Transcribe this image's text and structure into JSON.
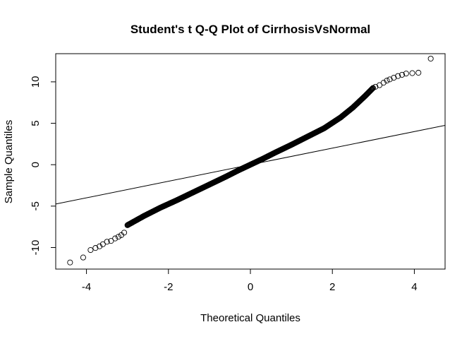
{
  "chart_data": {
    "type": "scatter",
    "title": "Student's t Q-Q Plot of CirrhosisVsNormal",
    "xlabel": "Theoretical Quantiles",
    "ylabel": "Sample Quantiles",
    "xlim": [
      -4.75,
      4.75
    ],
    "ylim": [
      -12.6,
      13.4
    ],
    "xticks": [
      -4,
      -2,
      0,
      2,
      4
    ],
    "yticks": [
      -10,
      -5,
      0,
      5,
      10
    ],
    "grid": false,
    "legend": "none",
    "reference_line": {
      "slope": 1.0,
      "intercept": 0.0
    },
    "curve_points": [
      [
        -3.0,
        -7.3
      ],
      [
        -2.6,
        -6.2
      ],
      [
        -2.2,
        -5.2
      ],
      [
        -1.8,
        -4.3
      ],
      [
        -1.4,
        -3.35
      ],
      [
        -1.0,
        -2.4
      ],
      [
        -0.6,
        -1.45
      ],
      [
        -0.3,
        -0.7
      ],
      [
        0.0,
        0.0
      ],
      [
        0.3,
        0.7
      ],
      [
        0.6,
        1.45
      ],
      [
        1.0,
        2.4
      ],
      [
        1.4,
        3.4
      ],
      [
        1.8,
        4.4
      ],
      [
        2.2,
        5.7
      ],
      [
        2.5,
        6.9
      ],
      [
        2.8,
        8.3
      ],
      [
        3.0,
        9.3
      ]
    ],
    "tail_points": [
      [
        -4.4,
        -11.8
      ],
      [
        -4.08,
        -11.2
      ],
      [
        -3.9,
        -10.3
      ],
      [
        -3.78,
        -10.05
      ],
      [
        -3.68,
        -9.85
      ],
      [
        -3.6,
        -9.6
      ],
      [
        -3.5,
        -9.3
      ],
      [
        -3.4,
        -9.2
      ],
      [
        -3.3,
        -8.9
      ],
      [
        -3.22,
        -8.7
      ],
      [
        -3.15,
        -8.5
      ],
      [
        -3.08,
        -8.2
      ],
      [
        3.05,
        9.4
      ],
      [
        3.15,
        9.6
      ],
      [
        3.25,
        9.9
      ],
      [
        3.33,
        10.15
      ],
      [
        3.4,
        10.3
      ],
      [
        3.5,
        10.5
      ],
      [
        3.6,
        10.7
      ],
      [
        3.7,
        10.85
      ],
      [
        3.8,
        11.0
      ],
      [
        3.95,
        11.05
      ],
      [
        4.1,
        11.1
      ],
      [
        4.4,
        12.8
      ]
    ]
  }
}
